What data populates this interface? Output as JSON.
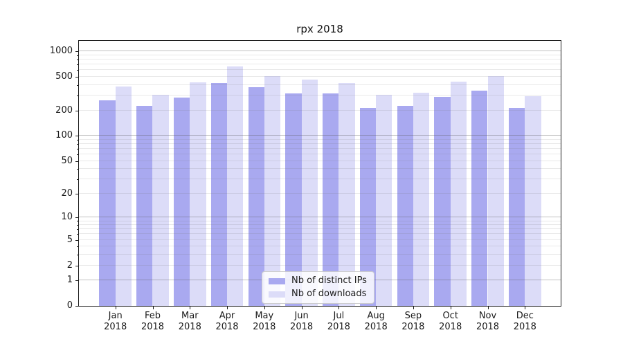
{
  "chart": {
    "title": "rpx 2018"
  },
  "chart_data": {
    "type": "bar",
    "title": "rpx 2018",
    "categories": [
      "Jan 2018",
      "Feb 2018",
      "Mar 2018",
      "Apr 2018",
      "May 2018",
      "Jun 2018",
      "Jul 2018",
      "Aug 2018",
      "Sep 2018",
      "Oct 2018",
      "Nov 2018",
      "Dec 2018"
    ],
    "series": [
      {
        "name": "Nb of distinct IPs",
        "color": "#a9a9f0",
        "values": [
          263,
          227,
          287,
          427,
          375,
          320,
          318,
          215,
          226,
          289,
          345,
          214
        ]
      },
      {
        "name": "Nb of downloads",
        "color": "#dcdcf8",
        "values": [
          383,
          306,
          431,
          670,
          508,
          468,
          426,
          306,
          324,
          440,
          513,
          294
        ]
      }
    ],
    "yscale": "log1p",
    "ylim": [
      0,
      1300
    ],
    "yticks": [
      0,
      1,
      2,
      5,
      10,
      20,
      50,
      100,
      200,
      500,
      1000
    ],
    "grid": {
      "major": [
        1,
        10,
        100,
        1000
      ],
      "minor": [
        2,
        3,
        4,
        5,
        6,
        7,
        8,
        9,
        20,
        30,
        40,
        50,
        60,
        70,
        80,
        90,
        200,
        300,
        400,
        500,
        600,
        700,
        800,
        900
      ]
    },
    "legend_position": "lower center",
    "colors": {
      "grid_major": "#b3b3b3",
      "grid_minor": "#e9e9e9",
      "spine": "#1a1a1a"
    }
  }
}
